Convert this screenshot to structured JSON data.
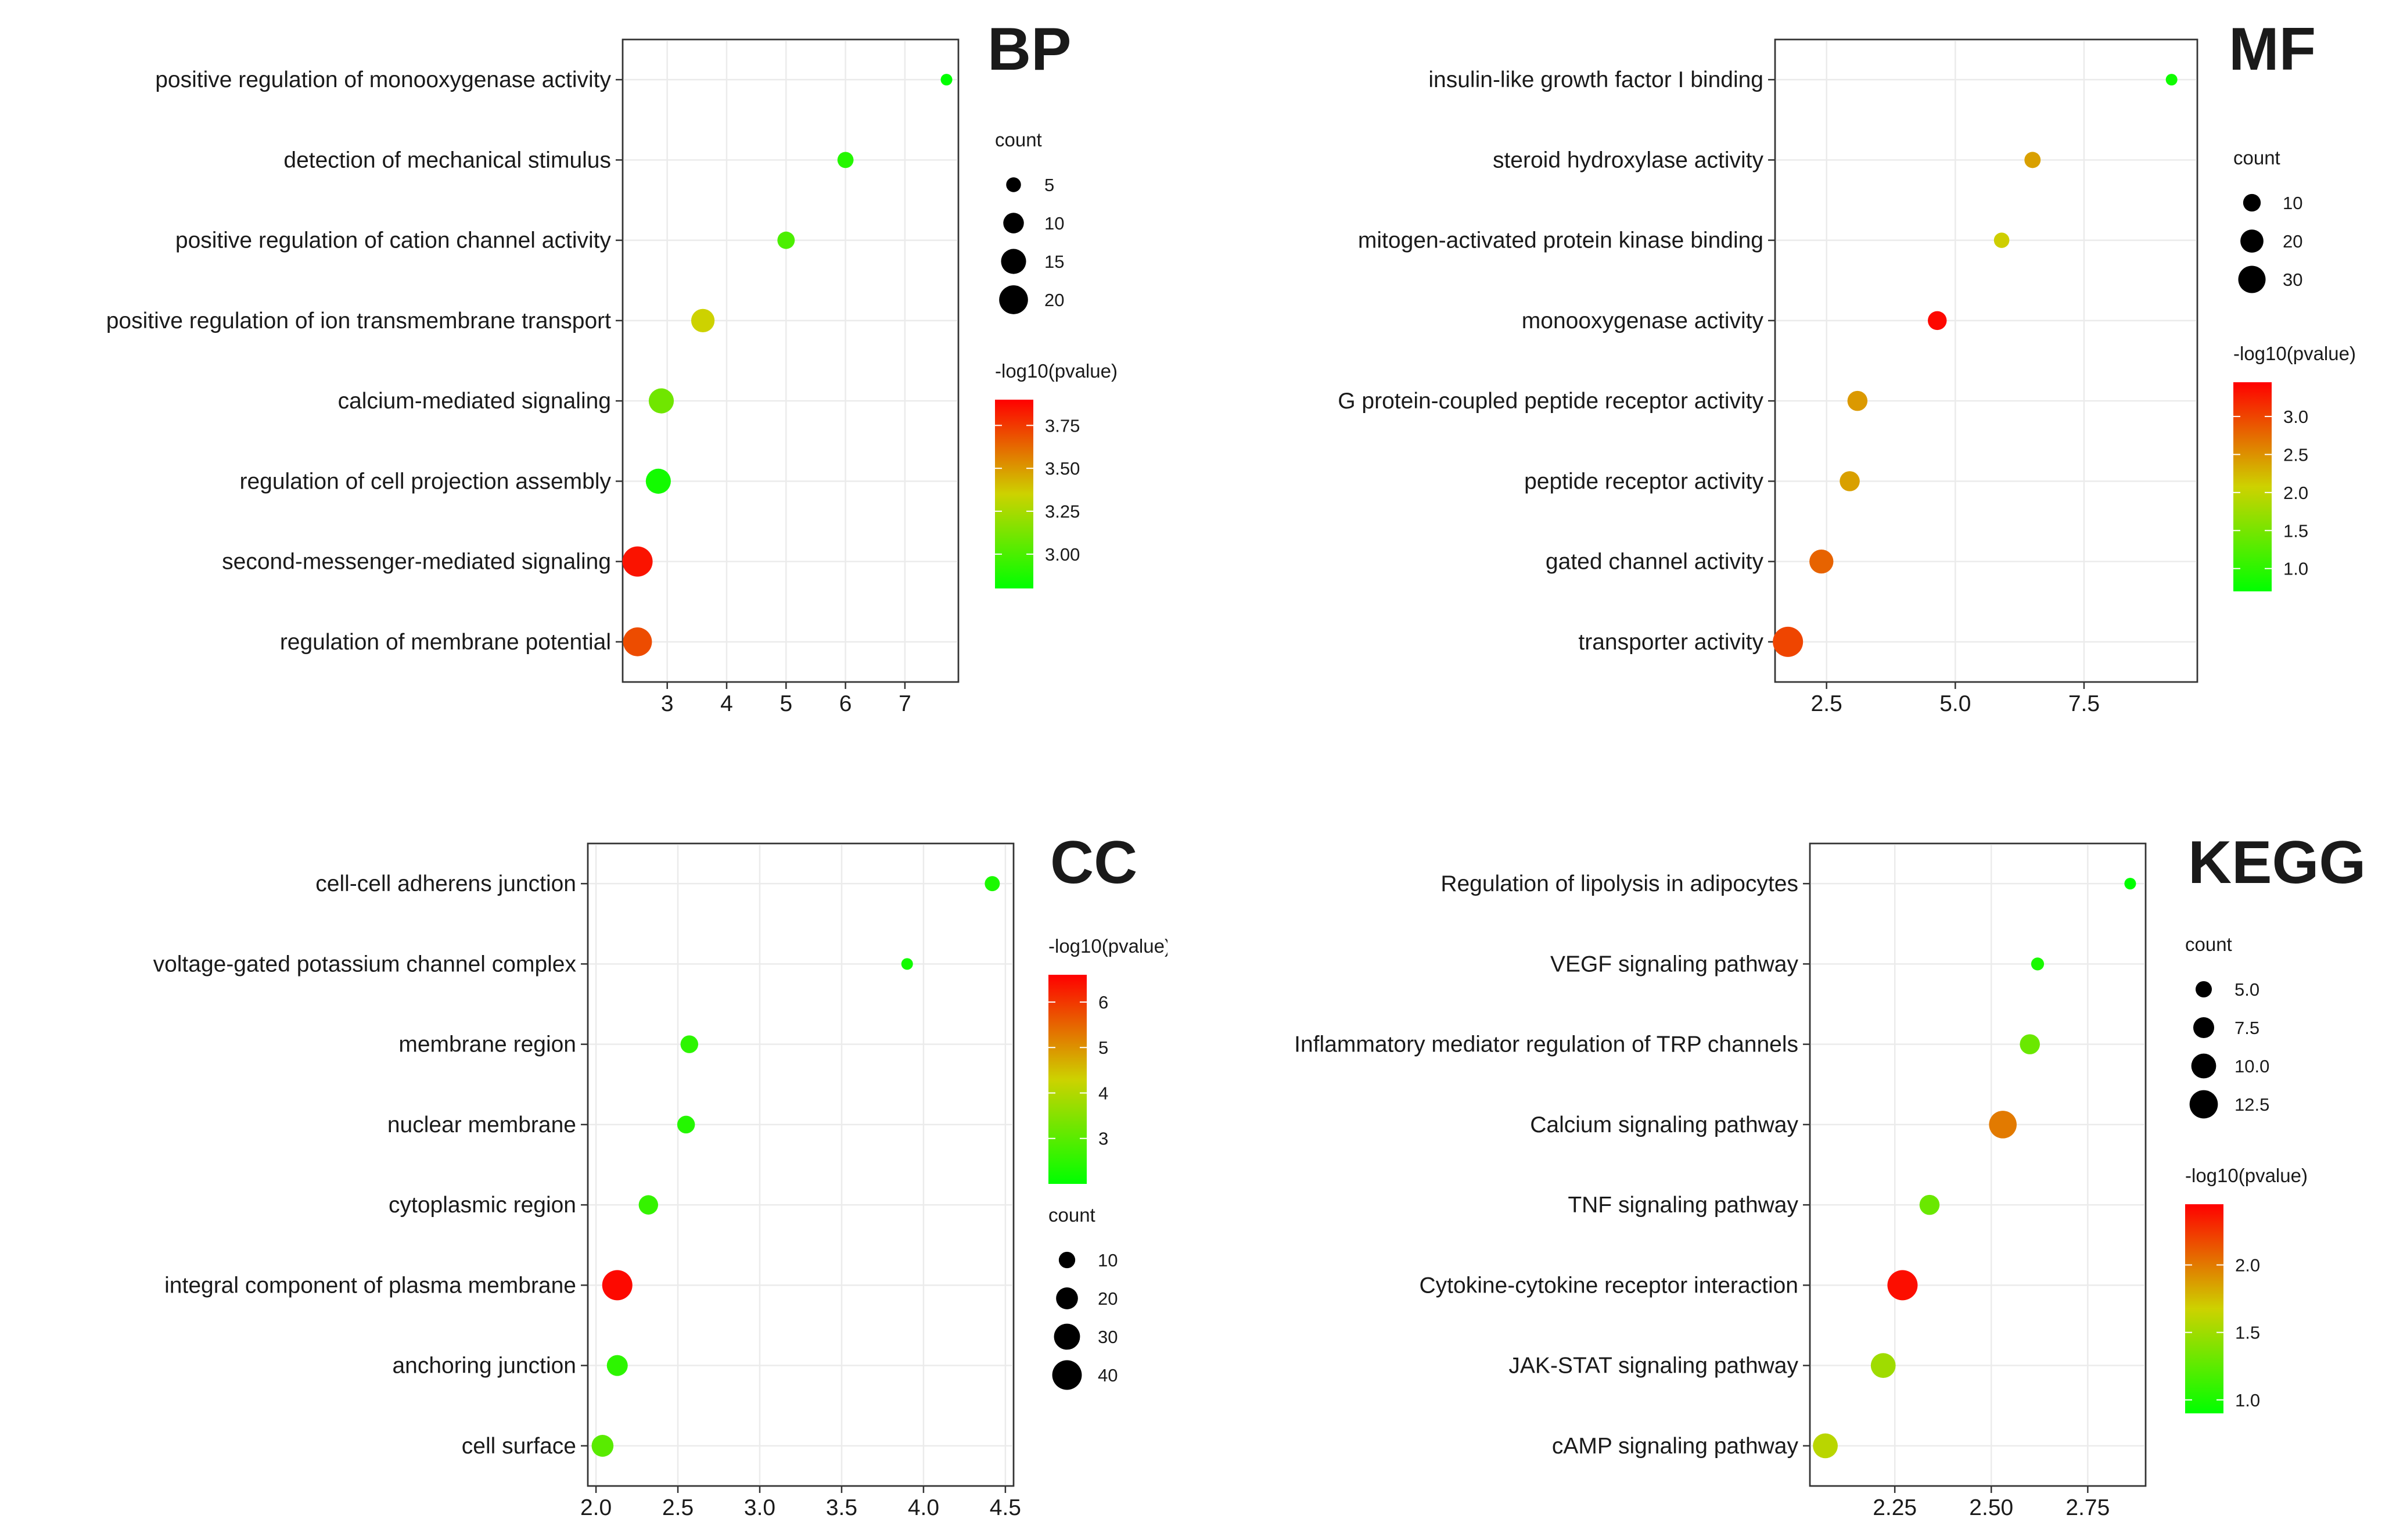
{
  "chart_data": [
    {
      "type": "scatter",
      "title": "BP",
      "x_ticks": [
        3,
        4,
        5,
        6,
        7
      ],
      "x_tick_labels": [
        "3",
        "4",
        "5",
        "6",
        "7"
      ],
      "xlim": [
        2.25,
        7.9
      ],
      "terms": [
        {
          "name": "positive regulation of monooxygenase activity",
          "x": 7.7,
          "count": 3,
          "logp": 2.8
        },
        {
          "name": "detection of mechanical stimulus",
          "x": 6.0,
          "count": 6,
          "logp": 2.9
        },
        {
          "name": "positive regulation of cation channel activity",
          "x": 5.0,
          "count": 7,
          "logp": 3.0
        },
        {
          "name": "positive regulation of ion transmembrane transport",
          "x": 3.6,
          "count": 13,
          "logp": 3.35
        },
        {
          "name": "calcium-mediated signaling",
          "x": 2.9,
          "count": 15,
          "logp": 3.1
        },
        {
          "name": "regulation of cell projection assembly",
          "x": 2.85,
          "count": 15,
          "logp": 2.85
        },
        {
          "name": "second-messenger-mediated signaling",
          "x": 2.5,
          "count": 22,
          "logp": 3.85
        },
        {
          "name": "regulation of membrane potential",
          "x": 2.5,
          "count": 20,
          "logp": 3.7
        }
      ],
      "size_legend": {
        "title": "count",
        "labels": [
          "5",
          "10",
          "15",
          "20"
        ],
        "values": [
          5,
          10,
          15,
          20
        ],
        "domain": [
          3,
          22
        ]
      },
      "color_legend": {
        "title": "-log10(pvalue)",
        "tick_labels": [
          "3.75",
          "3.50",
          "3.25",
          "3.00"
        ],
        "tick_values": [
          3.75,
          3.5,
          3.25,
          3.0
        ],
        "range": [
          2.8,
          3.9
        ]
      }
    },
    {
      "type": "scatter",
      "title": "MF",
      "x_ticks": [
        2.5,
        5.0,
        7.5
      ],
      "x_tick_labels": [
        "2.5",
        "5.0",
        "7.5"
      ],
      "xlim": [
        1.5,
        9.7
      ],
      "terms": [
        {
          "name": "insulin-like growth factor I binding",
          "x": 9.2,
          "count": 3,
          "logp": 0.8
        },
        {
          "name": "steroid hydroxylase activity",
          "x": 6.5,
          "count": 8,
          "logp": 2.4
        },
        {
          "name": "mitogen-activated protein kinase binding",
          "x": 5.9,
          "count": 7,
          "logp": 2.1
        },
        {
          "name": "monooxygenase activity",
          "x": 4.65,
          "count": 12,
          "logp": 3.4
        },
        {
          "name": "G protein-coupled peptide receptor activity",
          "x": 3.1,
          "count": 14,
          "logp": 2.45
        },
        {
          "name": "peptide receptor activity",
          "x": 2.95,
          "count": 14,
          "logp": 2.4
        },
        {
          "name": "gated channel activity",
          "x": 2.4,
          "count": 22,
          "logp": 2.8
        },
        {
          "name": "transporter activity",
          "x": 1.75,
          "count": 38,
          "logp": 3.0
        }
      ],
      "size_legend": {
        "title": "count",
        "labels": [
          "10",
          "20",
          "30"
        ],
        "values": [
          10,
          20,
          30
        ],
        "domain": [
          3,
          38
        ]
      },
      "color_legend": {
        "title": "-log10(pvalue)",
        "tick_labels": [
          "3.0",
          "2.5",
          "2.0",
          "1.5",
          "1.0"
        ],
        "tick_values": [
          3.0,
          2.5,
          2.0,
          1.5,
          1.0
        ],
        "range": [
          0.7,
          3.45
        ]
      }
    },
    {
      "type": "scatter",
      "title": "CC",
      "x_ticks": [
        2.0,
        2.5,
        3.0,
        3.5,
        4.0,
        4.5
      ],
      "x_tick_labels": [
        "2.0",
        "2.5",
        "3.0",
        "3.5",
        "4.0",
        "4.5"
      ],
      "xlim": [
        1.95,
        4.55
      ],
      "terms": [
        {
          "name": "cell-cell adherens junction",
          "x": 4.42,
          "count": 8,
          "logp": 2.3
        },
        {
          "name": "voltage-gated potassium channel complex",
          "x": 3.9,
          "count": 4,
          "logp": 2.2
        },
        {
          "name": "membrane region",
          "x": 2.57,
          "count": 12,
          "logp": 2.5
        },
        {
          "name": "nuclear membrane",
          "x": 2.55,
          "count": 12,
          "logp": 2.4
        },
        {
          "name": "cytoplasmic region",
          "x": 2.32,
          "count": 15,
          "logp": 2.6
        },
        {
          "name": "integral component of plasma membrane",
          "x": 2.13,
          "count": 42,
          "logp": 6.5
        },
        {
          "name": "anchoring junction",
          "x": 2.13,
          "count": 18,
          "logp": 2.5
        },
        {
          "name": "cell surface",
          "x": 2.04,
          "count": 20,
          "logp": 3.0
        }
      ],
      "size_legend": {
        "title": "count",
        "labels": [
          "10",
          "20",
          "30",
          "40"
        ],
        "values": [
          10,
          20,
          30,
          40
        ],
        "domain": [
          4,
          42
        ]
      },
      "color_legend": {
        "title": "-log10(pvalue)",
        "tick_labels": [
          "6",
          "5",
          "4",
          "3"
        ],
        "tick_values": [
          6,
          5,
          4,
          3
        ],
        "range": [
          2.0,
          6.6
        ]
      }
    },
    {
      "type": "scatter",
      "title": "KEGG",
      "x_ticks": [
        2.25,
        2.5,
        2.75
      ],
      "x_tick_labels": [
        "2.25",
        "2.50",
        "2.75"
      ],
      "xlim": [
        2.03,
        2.9
      ],
      "terms": [
        {
          "name": "Regulation of lipolysis in adipocytes",
          "x": 2.86,
          "count": 3,
          "logp": 0.9
        },
        {
          "name": "VEGF signaling pathway",
          "x": 2.62,
          "count": 3.5,
          "logp": 1.0
        },
        {
          "name": "Inflammatory mediator regulation of TRP channels",
          "x": 2.6,
          "count": 7,
          "logp": 1.3
        },
        {
          "name": "Calcium signaling pathway",
          "x": 2.53,
          "count": 12,
          "logp": 2.0
        },
        {
          "name": "TNF signaling pathway",
          "x": 2.34,
          "count": 7,
          "logp": 1.3
        },
        {
          "name": "Cytokine-cytokine receptor interaction",
          "x": 2.27,
          "count": 14,
          "logp": 2.4
        },
        {
          "name": "JAK-STAT signaling pathway",
          "x": 2.22,
          "count": 10,
          "logp": 1.5
        },
        {
          "name": "cAMP signaling pathway",
          "x": 2.07,
          "count": 10,
          "logp": 1.6
        }
      ],
      "size_legend": {
        "title": "count",
        "labels": [
          "5.0",
          "7.5",
          "10.0",
          "12.5"
        ],
        "values": [
          5.0,
          7.5,
          10.0,
          12.5
        ],
        "domain": [
          3,
          14
        ]
      },
      "color_legend": {
        "title": "-log10(pvalue)",
        "tick_labels": [
          "2.0",
          "1.5",
          "1.0"
        ],
        "tick_values": [
          2.0,
          1.5,
          1.0
        ],
        "range": [
          0.9,
          2.45
        ]
      }
    }
  ]
}
